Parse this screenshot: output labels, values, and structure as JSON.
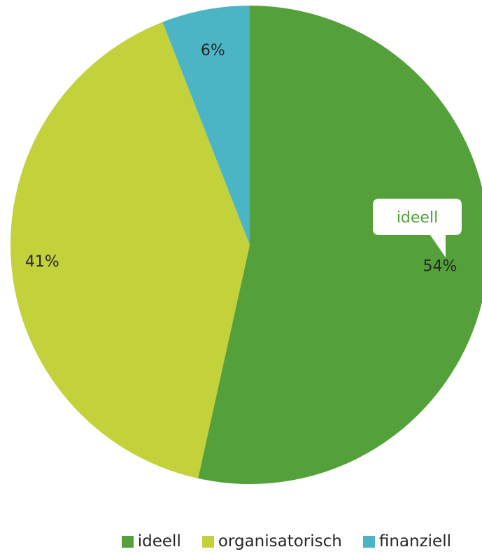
{
  "chart_data": {
    "type": "pie",
    "categories": [
      "ideell",
      "organisatorisch",
      "finanziell"
    ],
    "values": [
      54,
      41,
      6
    ],
    "value_labels": [
      "54%",
      "41%",
      "6%"
    ],
    "colors": [
      "#54A03A",
      "#C3D13B",
      "#4BB5C6"
    ],
    "start_angle_deg": 0,
    "direction": "clockwise",
    "legend_position": "bottom",
    "callout": {
      "category_index": 0,
      "text": "ideell",
      "color": "#54A03A"
    }
  }
}
